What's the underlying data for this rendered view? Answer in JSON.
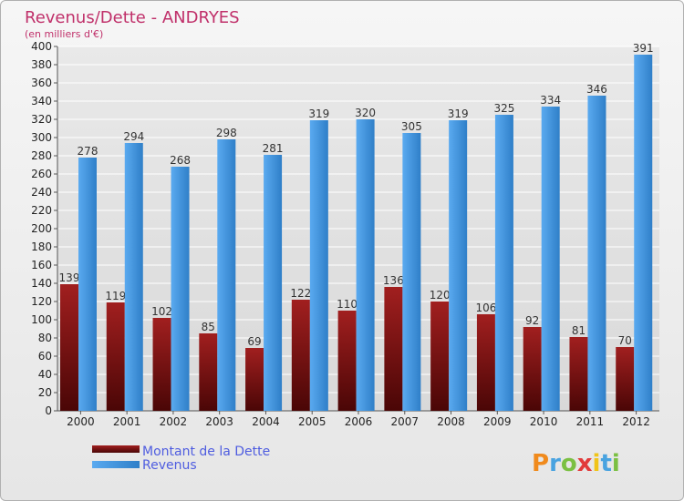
{
  "chart_data": {
    "type": "bar",
    "title": "Revenus/Dette - ANDRYES",
    "subtitle": "(en milliers d'€)",
    "categories": [
      "2000",
      "2001",
      "2002",
      "2003",
      "2004",
      "2005",
      "2006",
      "2007",
      "2008",
      "2009",
      "2010",
      "2011",
      "2012"
    ],
    "series": [
      {
        "name": "Montant de la Dette",
        "values": [
          139,
          119,
          102,
          85,
          69,
          122,
          110,
          136,
          120,
          106,
          92,
          81,
          70
        ],
        "color": "#8b1a1a"
      },
      {
        "name": "Revenus",
        "values": [
          278,
          294,
          268,
          298,
          281,
          319,
          320,
          305,
          319,
          325,
          334,
          346,
          391
        ],
        "color": "#3d93dd"
      }
    ],
    "ylim": [
      0,
      400
    ],
    "ytick_step": 20,
    "grid": true,
    "legend_position": "bottom-left",
    "colors": {
      "title": "#c0306a",
      "legend_text": "#4f5de0",
      "axis_text": "#222222",
      "grid": "#ffffff"
    }
  },
  "brand": {
    "logo_text": "Proxiti"
  }
}
